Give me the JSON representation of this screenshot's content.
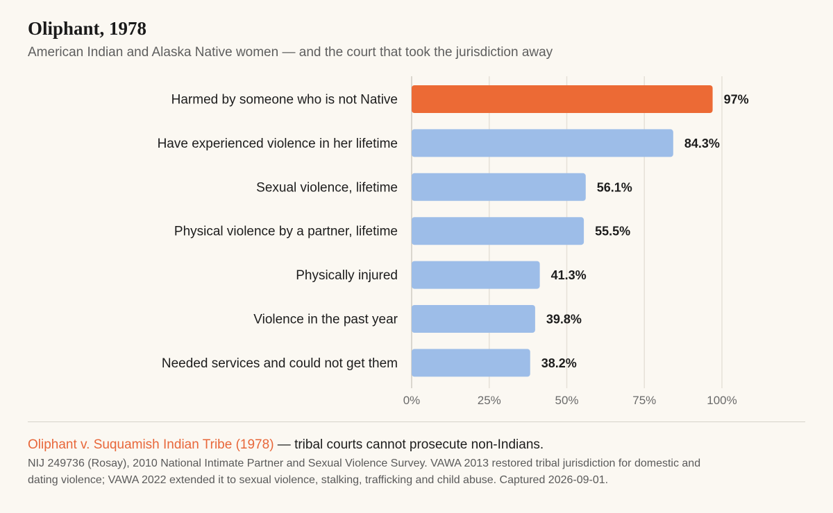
{
  "header": {
    "title": "Oliphant, 1978",
    "subtitle": "American Indian and Alaska Native women — and the court that took the jurisdiction away"
  },
  "chart_data": {
    "type": "bar",
    "orientation": "horizontal",
    "categories": [
      "Harmed by someone who is not Native",
      "Have experienced violence in her lifetime",
      "Sexual violence, lifetime",
      "Physical violence by a partner, lifetime",
      "Physically injured",
      "Violence in the past year",
      "Needed services and could not get them"
    ],
    "values": [
      97,
      84.3,
      56.1,
      55.5,
      41.3,
      39.8,
      38.2
    ],
    "value_labels": [
      "97%",
      "84.3%",
      "56.1%",
      "55.5%",
      "41.3%",
      "39.8%",
      "38.2%"
    ],
    "highlight_index": 0,
    "xlim": [
      0,
      100
    ],
    "x_ticks": [
      0,
      25,
      50,
      75,
      100
    ],
    "x_tick_labels": [
      "0%",
      "25%",
      "50%",
      "75%",
      "100%"
    ],
    "grid": true,
    "colors": {
      "highlight": "#ec6a35",
      "default": "#9dbde8"
    }
  },
  "footnote": {
    "case_name": "Oliphant v. Suquamish Indian Tribe (1978)",
    "case_text": " — tribal courts cannot prosecute non-Indians.",
    "source": "NIJ 249736 (Rosay), 2010 National Intimate Partner and Sexual Violence Survey. VAWA 2013 restored tribal jurisdiction for domestic and dating violence; VAWA 2022 extended it to sexual violence, stalking, trafficking and child abuse. Captured 2026-09-01."
  }
}
